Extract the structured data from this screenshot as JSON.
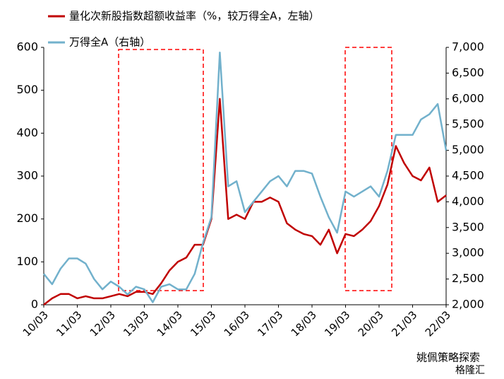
{
  "chart_data": {
    "type": "line",
    "legend_position": "top-left",
    "x": [
      "10/03",
      null,
      null,
      null,
      "11/03",
      null,
      null,
      null,
      "12/03",
      null,
      null,
      null,
      "13/03",
      null,
      null,
      null,
      "14/03",
      null,
      null,
      null,
      "15/03",
      null,
      null,
      null,
      "16/03",
      null,
      null,
      null,
      "17/03",
      null,
      null,
      null,
      "18/03",
      null,
      null,
      null,
      "19/03",
      null,
      null,
      null,
      "20/03",
      null,
      null,
      null,
      "21/03",
      null,
      null,
      null,
      "22/03"
    ],
    "series": [
      {
        "name": "量化次新股指数超额收益率（%，较万得全A，左轴）",
        "color": "#c00000",
        "axis": "y",
        "values": [
          0,
          15,
          25,
          25,
          15,
          20,
          15,
          15,
          20,
          25,
          20,
          30,
          30,
          25,
          50,
          80,
          100,
          110,
          140,
          140,
          200,
          480,
          200,
          210,
          200,
          240,
          240,
          250,
          240,
          190,
          175,
          165,
          160,
          140,
          175,
          120,
          165,
          160,
          175,
          195,
          230,
          280,
          370,
          330,
          300,
          290,
          320,
          240,
          255
        ]
      },
      {
        "name": "万得全A（右轴）",
        "color": "#72b1cc",
        "axis": "y2",
        "values": [
          2600,
          2400,
          2700,
          2900,
          2900,
          2800,
          2500,
          2300,
          2450,
          2350,
          2200,
          2350,
          2300,
          2050,
          2350,
          2400,
          2300,
          2300,
          2600,
          3200,
          3700,
          6900,
          4300,
          4400,
          3800,
          4000,
          4200,
          4400,
          4500,
          4300,
          4600,
          4600,
          4550,
          4100,
          3700,
          3400,
          4200,
          4100,
          4200,
          4300,
          4100,
          4600,
          5300,
          5300,
          5300,
          5600,
          5700,
          5900,
          5000
        ]
      }
    ],
    "ylim": [
      0,
      600
    ],
    "yticks": [
      0,
      100,
      200,
      300,
      400,
      500,
      600
    ],
    "y2lim": [
      2000,
      7000
    ],
    "y2ticks": [
      {
        "value": 2000,
        "label": "2,000"
      },
      {
        "value": 2500,
        "label": "2,500"
      },
      {
        "value": 3000,
        "label": "3,000"
      },
      {
        "value": 3500,
        "label": "3,500"
      },
      {
        "value": 4000,
        "label": "4,000"
      },
      {
        "value": 4500,
        "label": "4,500"
      },
      {
        "value": 5000,
        "label": "5,000"
      },
      {
        "value": 5500,
        "label": "5,500"
      },
      {
        "value": 6000,
        "label": "6,000"
      },
      {
        "value": 6500,
        "label": "6,500"
      },
      {
        "value": 7000,
        "label": "7,000"
      }
    ],
    "grid": false
  },
  "watermark": [
    "姚佩策略探索",
    "格隆汇"
  ]
}
